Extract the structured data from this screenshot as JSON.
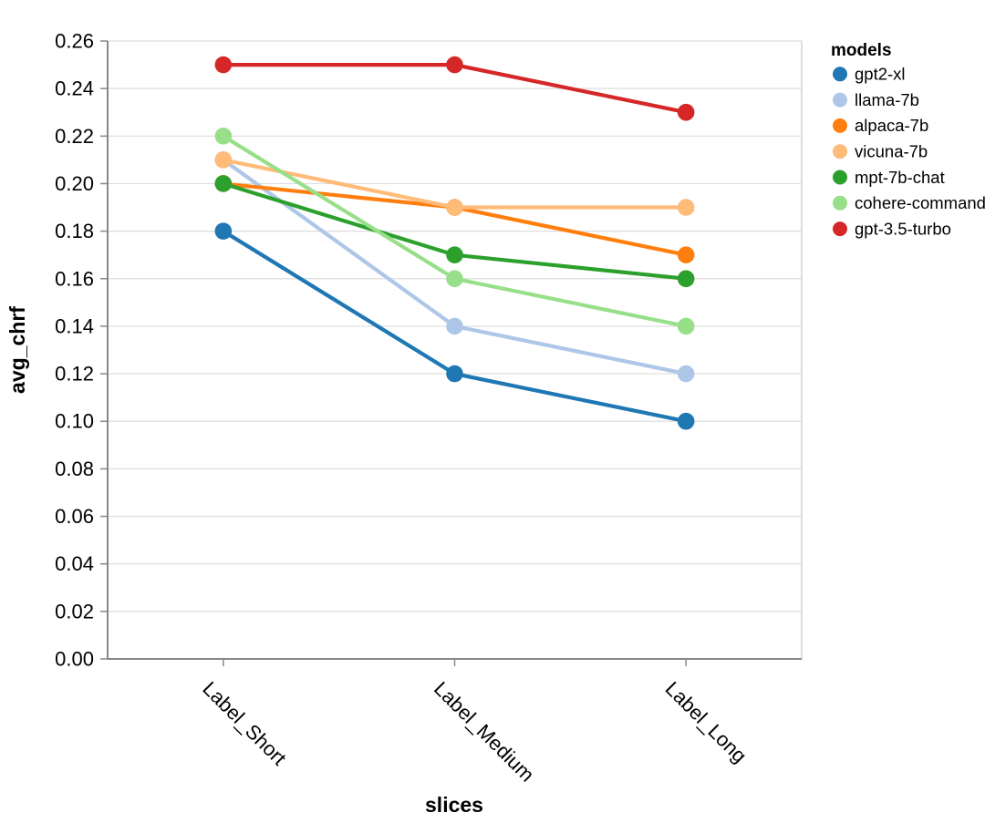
{
  "chart_data": {
    "type": "line",
    "title": "",
    "xlabel": "slices",
    "ylabel": "avg_chrf",
    "legend_title": "models",
    "legend_position": "top-right",
    "categories": [
      "Label_Short",
      "Label_Medium",
      "Label_Long"
    ],
    "series": [
      {
        "name": "gpt2-xl",
        "color": "#1f77b4",
        "values": [
          0.18,
          0.12,
          0.1
        ]
      },
      {
        "name": "llama-7b",
        "color": "#aec7e8",
        "values": [
          0.21,
          0.14,
          0.12
        ]
      },
      {
        "name": "alpaca-7b",
        "color": "#ff7f0e",
        "values": [
          0.2,
          0.19,
          0.17
        ]
      },
      {
        "name": "vicuna-7b",
        "color": "#ffbb78",
        "values": [
          0.21,
          0.19,
          0.19
        ]
      },
      {
        "name": "mpt-7b-chat",
        "color": "#2ca02c",
        "values": [
          0.2,
          0.17,
          0.16
        ]
      },
      {
        "name": "cohere-command",
        "color": "#98df8a",
        "values": [
          0.22,
          0.16,
          0.14
        ]
      },
      {
        "name": "gpt-3.5-turbo",
        "color": "#d62728",
        "values": [
          0.25,
          0.25,
          0.23
        ]
      }
    ],
    "ylim": [
      0,
      0.26
    ],
    "ytick_step": 0.02,
    "ytick_labels": [
      "0.00",
      "0.02",
      "0.04",
      "0.06",
      "0.08",
      "0.10",
      "0.12",
      "0.14",
      "0.16",
      "0.18",
      "0.20",
      "0.22",
      "0.24",
      "0.26"
    ],
    "grid": true,
    "x_label_angle": 45,
    "grid_color": "#dddddd",
    "axis_color": "#888888",
    "background_color": "#ffffff"
  }
}
